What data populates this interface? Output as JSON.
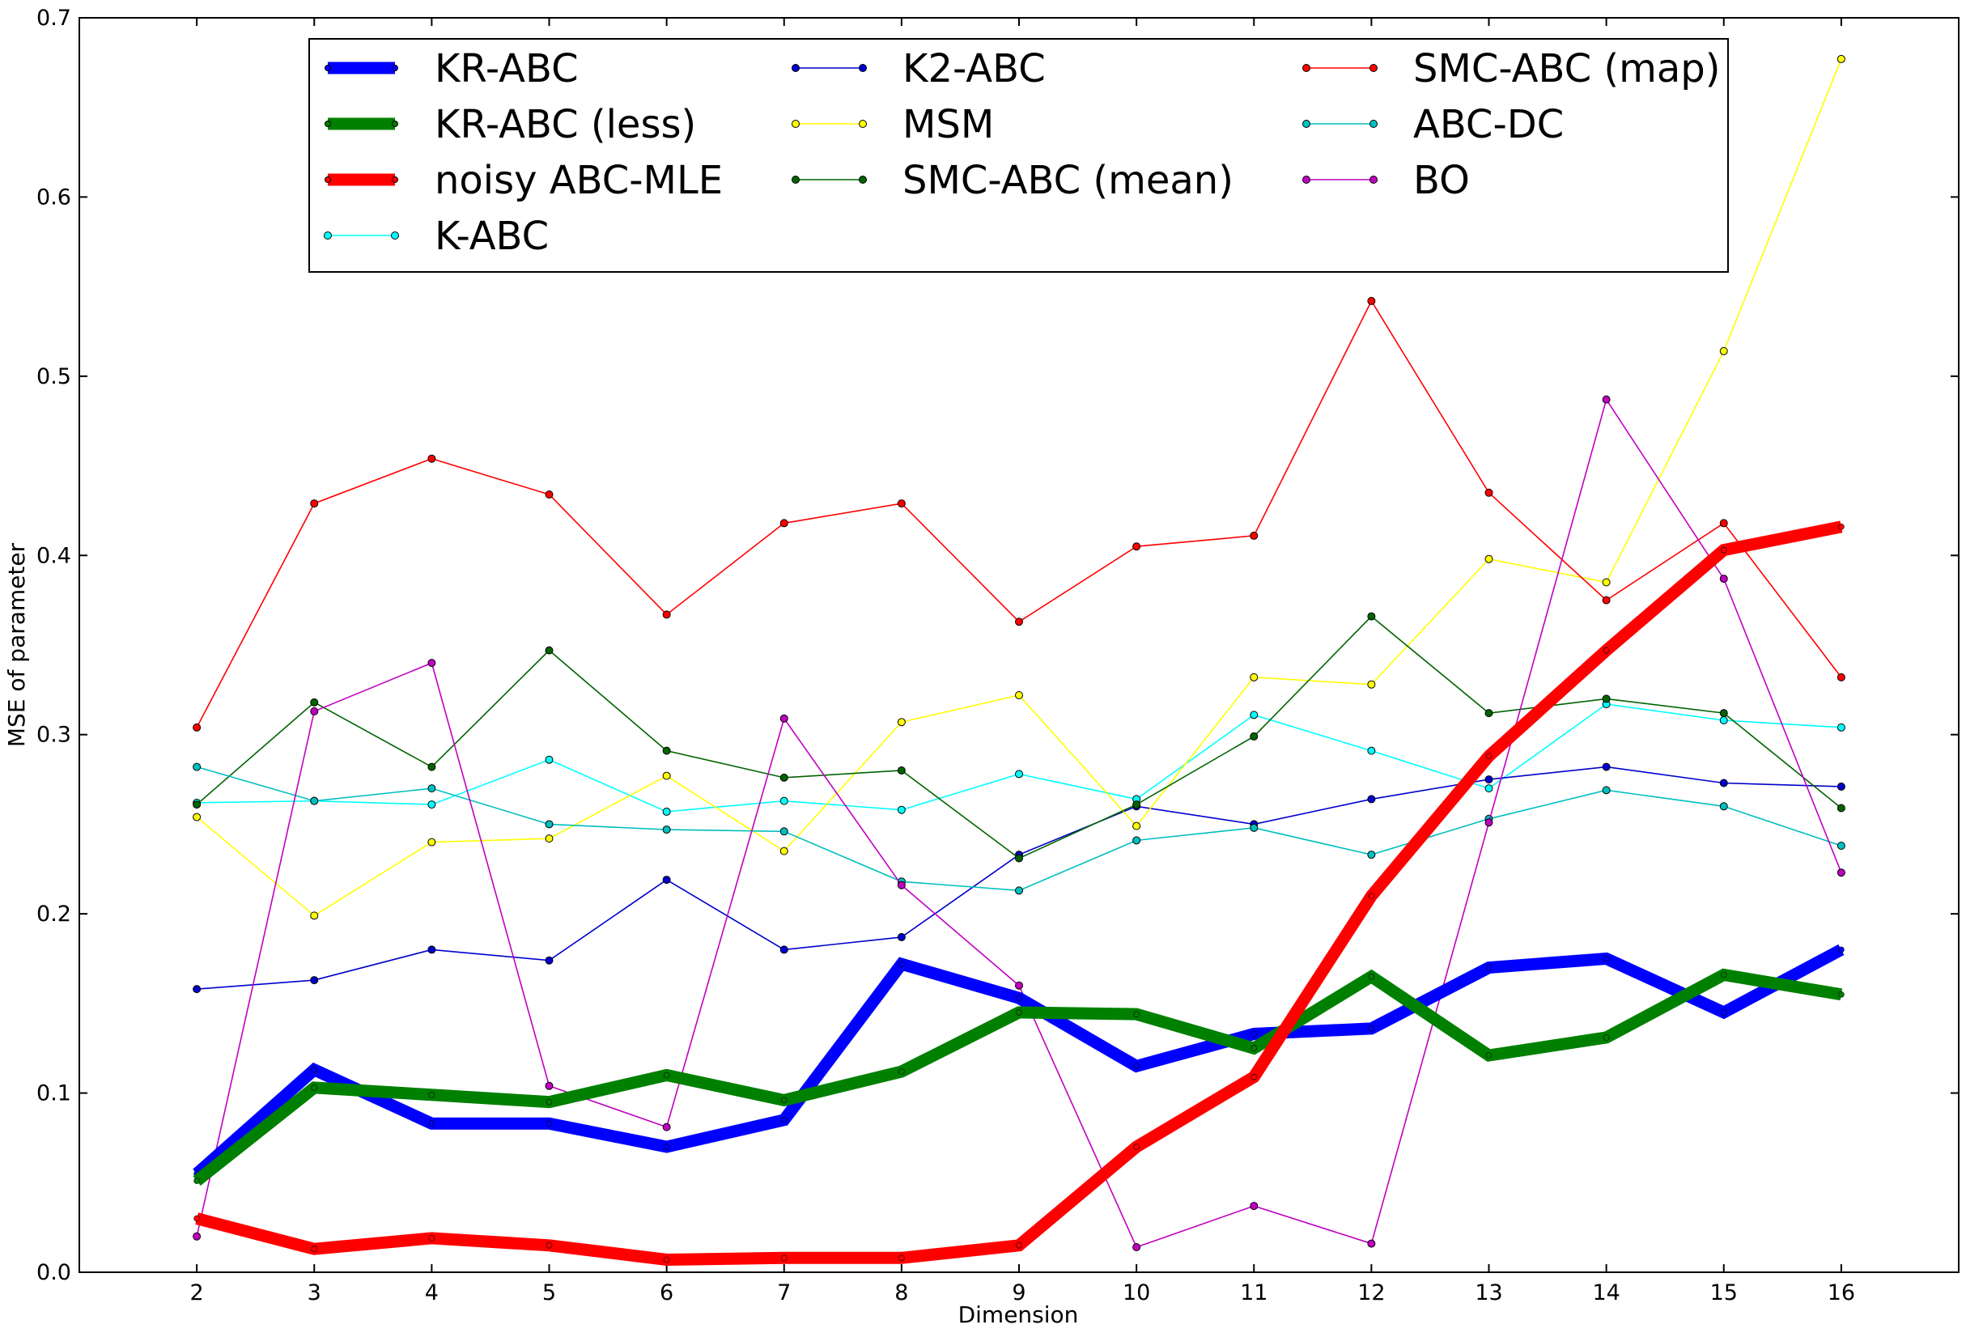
{
  "chart_data": {
    "type": "line",
    "title": "",
    "xlabel": "Dimension",
    "ylabel": "MSE of parameter",
    "x": [
      2,
      3,
      4,
      5,
      6,
      7,
      8,
      9,
      10,
      11,
      12,
      13,
      14,
      15,
      16
    ],
    "xlim": [
      1,
      17
    ],
    "ylim": [
      0,
      0.7
    ],
    "yticks": [
      "0.0",
      "0.1",
      "0.2",
      "0.3",
      "0.4",
      "0.5",
      "0.6",
      "0.7"
    ],
    "xticks": [
      "2",
      "3",
      "4",
      "5",
      "6",
      "7",
      "8",
      "9",
      "10",
      "11",
      "12",
      "13",
      "14",
      "15",
      "16"
    ],
    "grid": false,
    "legend_placement": "top-center",
    "series": [
      {
        "name": "KR-ABC",
        "color": "#0000ff",
        "style": "thick",
        "values": [
          0.055,
          0.113,
          0.083,
          0.083,
          0.07,
          0.085,
          0.172,
          0.153,
          0.115,
          0.133,
          0.136,
          0.17,
          0.175,
          0.145,
          0.18
        ]
      },
      {
        "name": "KR-ABC (less)",
        "color": "#008000",
        "style": "thick",
        "values": [
          0.051,
          0.103,
          0.099,
          0.095,
          0.11,
          0.096,
          0.112,
          0.145,
          0.144,
          0.125,
          0.165,
          0.121,
          0.131,
          0.166,
          0.155
        ]
      },
      {
        "name": "noisy ABC-MLE",
        "color": "#ff0000",
        "style": "thick",
        "values": [
          0.03,
          0.013,
          0.019,
          0.015,
          0.007,
          0.008,
          0.008,
          0.015,
          0.07,
          0.109,
          0.21,
          0.288,
          0.347,
          0.403,
          0.416
        ]
      },
      {
        "name": "K-ABC",
        "color": "#00ffff",
        "style": "thin",
        "values": [
          0.262,
          0.263,
          0.261,
          0.286,
          0.257,
          0.263,
          0.258,
          0.278,
          0.264,
          0.311,
          0.291,
          0.27,
          0.317,
          0.308,
          0.304
        ]
      },
      {
        "name": "K2-ABC",
        "color": "#0000cc",
        "style": "thin",
        "values": [
          0.158,
          0.163,
          0.18,
          0.174,
          0.219,
          0.18,
          0.187,
          0.233,
          0.26,
          0.25,
          0.264,
          0.275,
          0.282,
          0.273,
          0.271
        ]
      },
      {
        "name": "MSM",
        "color": "#ffff00",
        "style": "thin",
        "values": [
          0.254,
          0.199,
          0.24,
          0.242,
          0.277,
          0.235,
          0.307,
          0.322,
          0.249,
          0.332,
          0.328,
          0.398,
          0.385,
          0.514,
          0.677
        ]
      },
      {
        "name": "SMC-ABC (mean)",
        "color": "#006400",
        "style": "thin",
        "values": [
          0.261,
          0.318,
          0.282,
          0.347,
          0.291,
          0.276,
          0.28,
          0.231,
          0.261,
          0.299,
          0.366,
          0.312,
          0.32,
          0.312,
          0.259
        ]
      },
      {
        "name": "SMC-ABC (map)",
        "color": "#ff0000",
        "style": "thin",
        "values": [
          0.304,
          0.429,
          0.454,
          0.434,
          0.367,
          0.418,
          0.429,
          0.363,
          0.405,
          0.411,
          0.542,
          0.435,
          0.375,
          0.418,
          0.332
        ]
      },
      {
        "name": "ABC-DC",
        "color": "#00bfbf",
        "style": "thin",
        "values": [
          0.282,
          0.263,
          0.27,
          0.25,
          0.247,
          0.246,
          0.218,
          0.213,
          0.241,
          0.248,
          0.233,
          0.253,
          0.269,
          0.26,
          0.238
        ]
      },
      {
        "name": "BO",
        "color": "#c000c0",
        "style": "thin",
        "values": [
          0.02,
          0.313,
          0.34,
          0.104,
          0.081,
          0.309,
          0.216,
          0.16,
          0.014,
          0.037,
          0.016,
          0.251,
          0.487,
          0.387,
          0.223
        ]
      }
    ]
  }
}
